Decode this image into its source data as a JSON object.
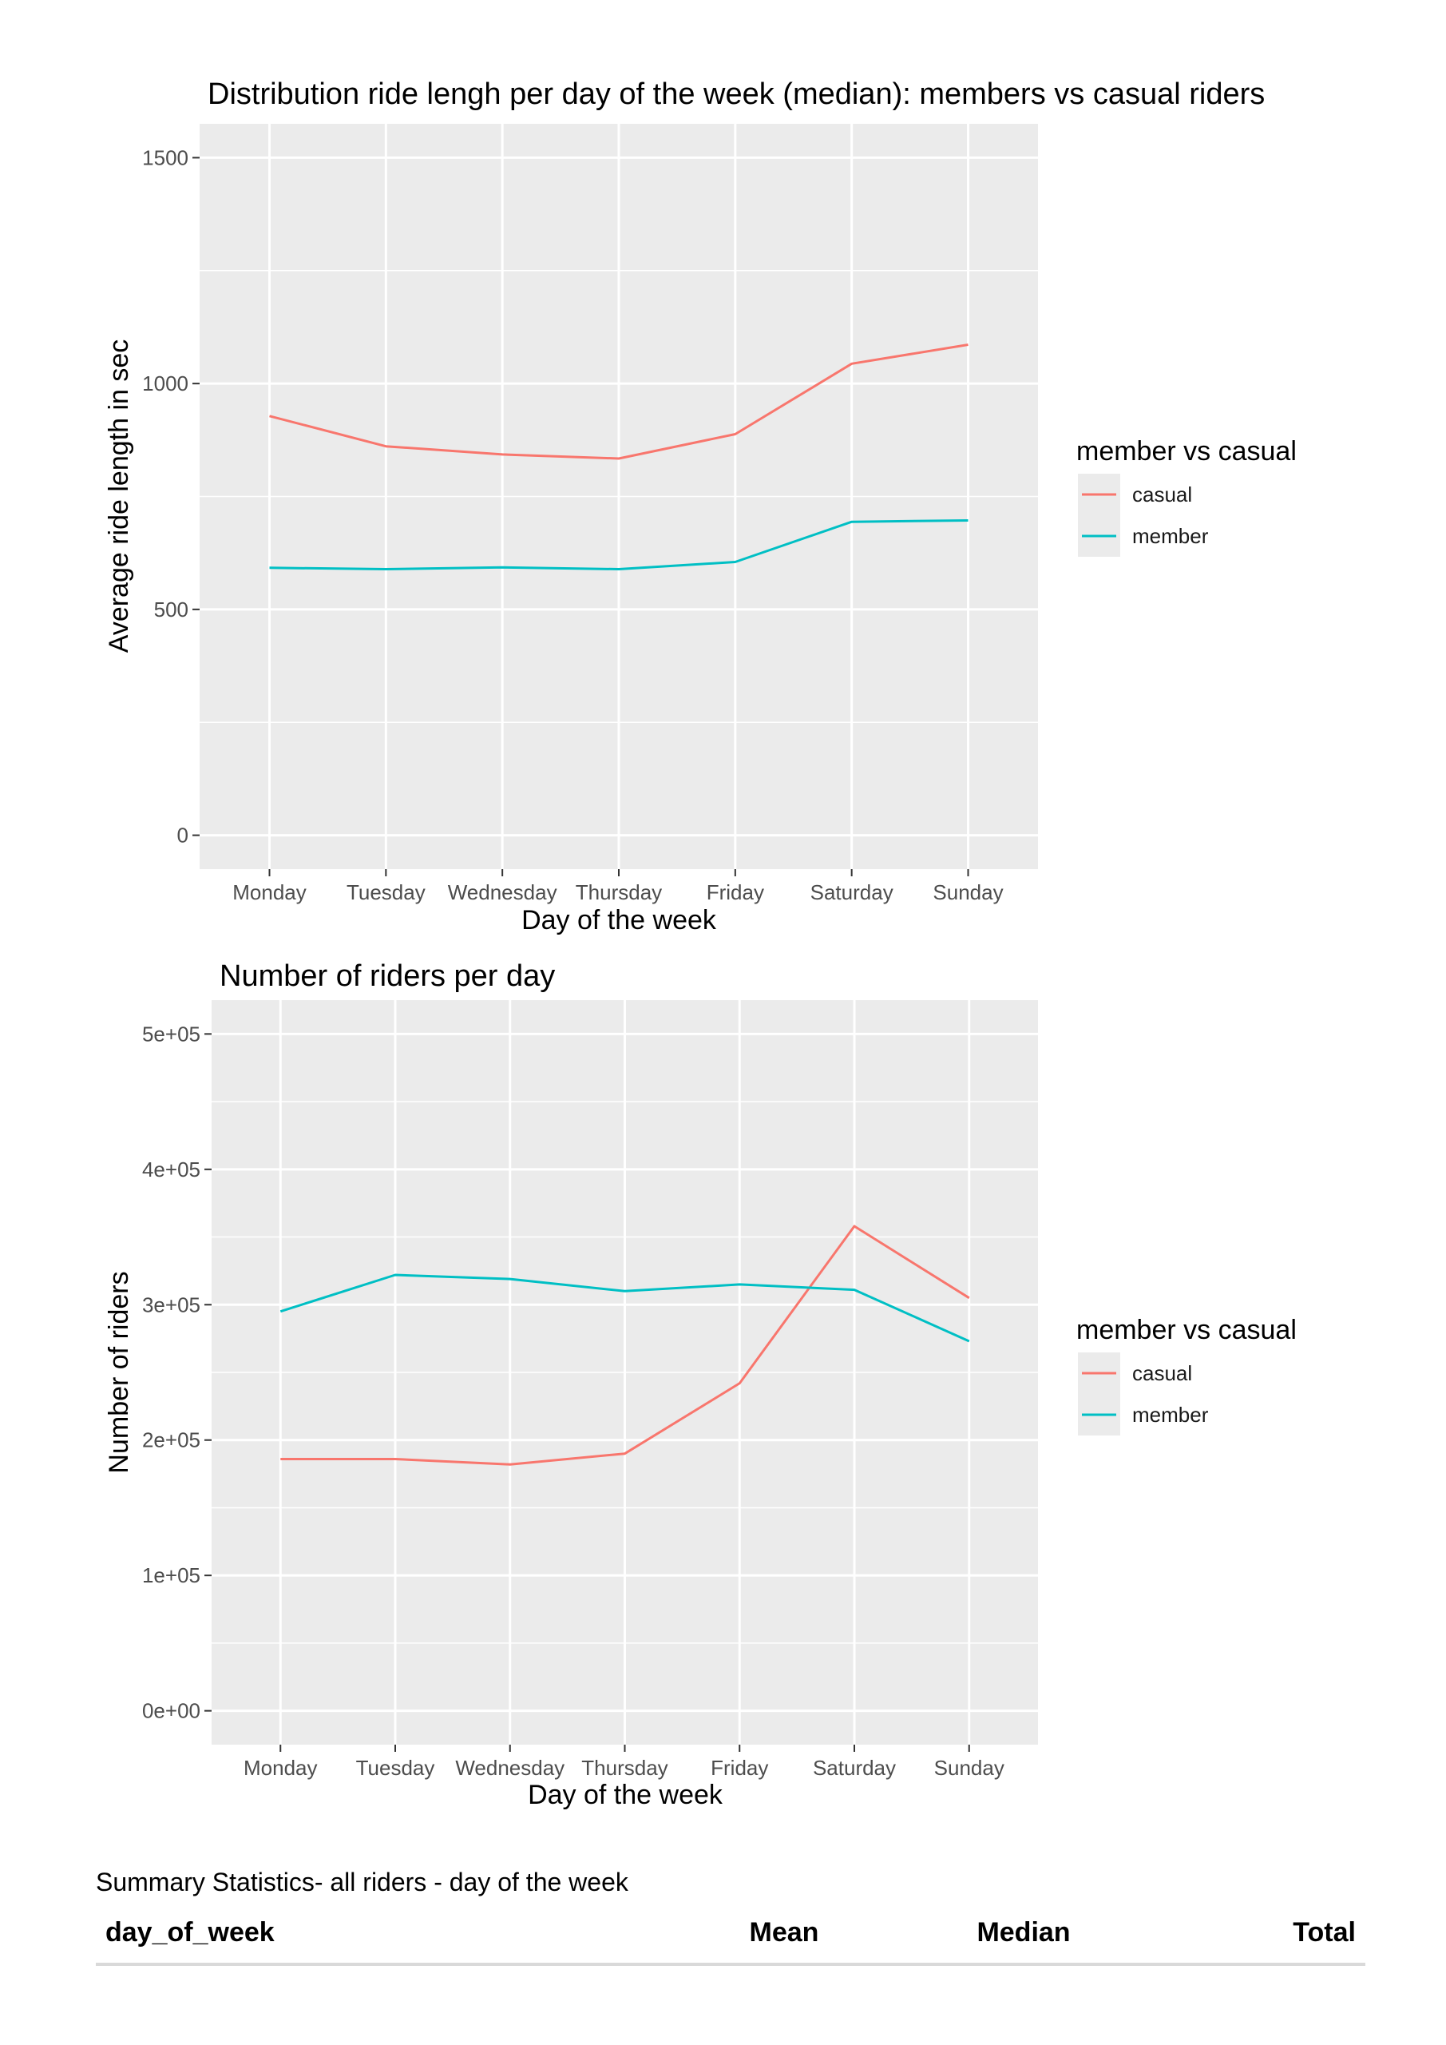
{
  "chart_data": [
    {
      "type": "line",
      "title": "Distribution ride lengh per day of the week (median): members vs casual riders",
      "xlabel": "Day of the week",
      "ylabel": "Average ride length in sec",
      "ylim": [
        -75,
        1575
      ],
      "yticks": [
        0,
        500,
        1000,
        1500
      ],
      "y_tick_labels": [
        "0",
        "500",
        "1000",
        "1500"
      ],
      "categories": [
        "Monday",
        "Tuesday",
        "Wednesday",
        "Thursday",
        "Friday",
        "Saturday",
        "Sunday"
      ],
      "legend_title": "member vs casual",
      "legend_position": "right",
      "series": [
        {
          "name": "casual",
          "color": "#F8766D",
          "values": [
            928,
            861,
            843,
            834,
            888,
            1044,
            1086
          ]
        },
        {
          "name": "member",
          "color": "#00BFC4",
          "values": [
            592,
            589,
            593,
            589,
            605,
            694,
            697
          ]
        }
      ]
    },
    {
      "type": "line",
      "title": "Number of riders per day",
      "xlabel": "Day of the week",
      "ylabel": "Number of riders",
      "ylim": [
        -25000,
        525000
      ],
      "yticks": [
        0,
        100000,
        200000,
        300000,
        400000,
        500000
      ],
      "y_tick_labels": [
        "0e+00",
        "1e+05",
        "2e+05",
        "3e+05",
        "4e+05",
        "5e+05"
      ],
      "categories": [
        "Monday",
        "Tuesday",
        "Wednesday",
        "Thursday",
        "Friday",
        "Saturday",
        "Sunday"
      ],
      "legend_title": "member vs casual",
      "legend_position": "right",
      "series": [
        {
          "name": "casual",
          "color": "#F8766D",
          "values": [
            186000,
            186000,
            182000,
            190000,
            242000,
            358000,
            305000
          ]
        },
        {
          "name": "member",
          "color": "#00BFC4",
          "values": [
            295000,
            322000,
            319000,
            310000,
            315000,
            311000,
            273000
          ]
        }
      ]
    }
  ],
  "summary": {
    "caption": "Summary Statistics- all riders - day of the week",
    "columns": [
      "day_of_week",
      "Mean",
      "Median",
      "Total"
    ]
  }
}
